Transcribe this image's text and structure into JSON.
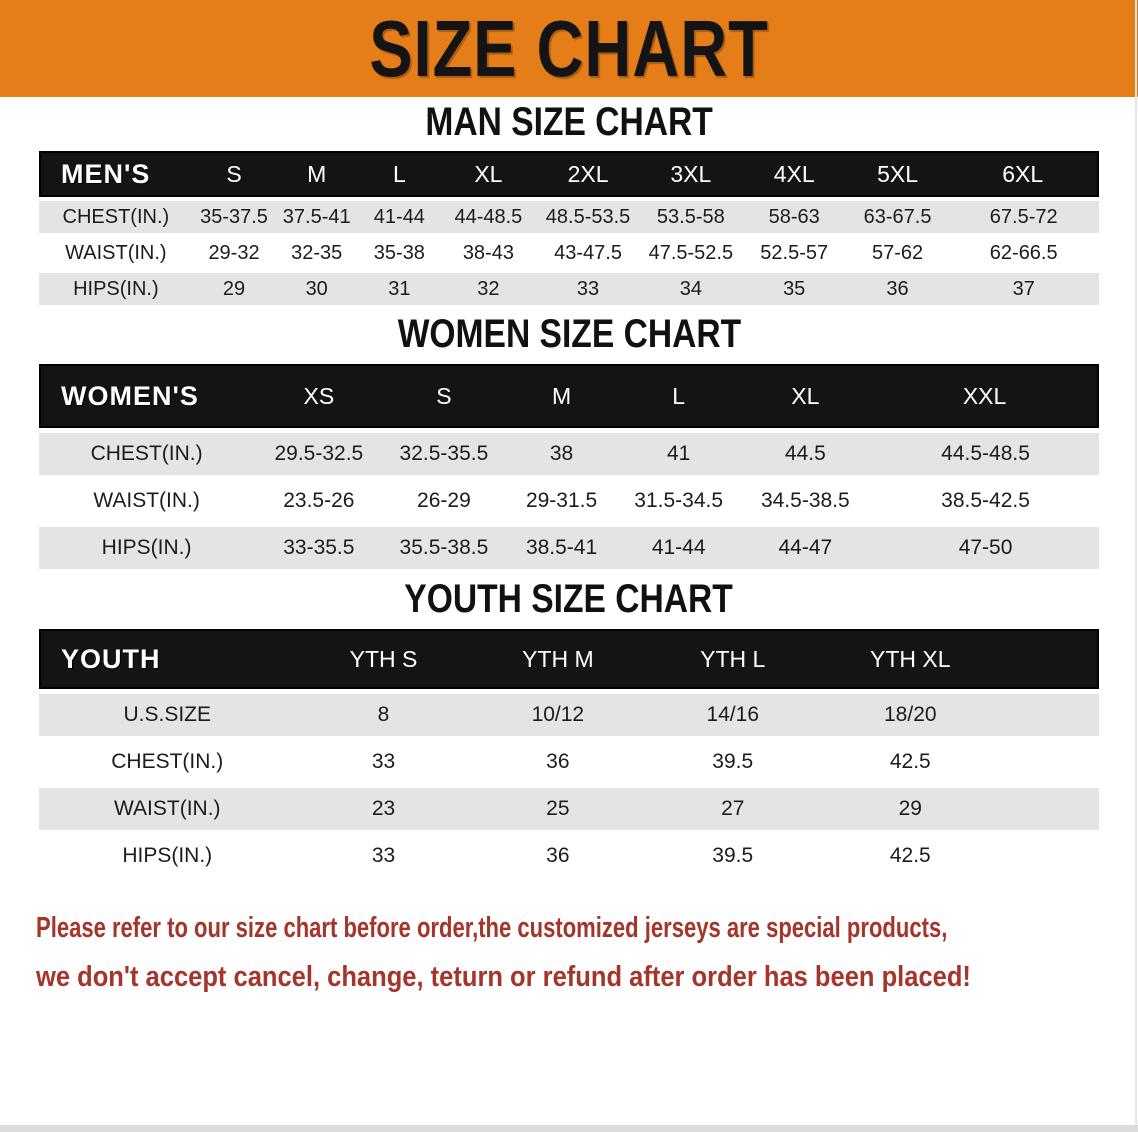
{
  "banner": {
    "title": "SIZE CHART"
  },
  "colors": {
    "banner_bg": "#E57E19",
    "header_bg": "#141414",
    "row_alt": "#E4E4E4",
    "disclaimer_color": "#A5352B"
  },
  "sections": [
    {
      "heading": "MAN SIZE CHART",
      "table": {
        "label": "MEN'S",
        "columns": [
          "S",
          "M",
          "L",
          "XL",
          "2XL",
          "3XL",
          "4XL",
          "5XL",
          "6XL"
        ],
        "rows": [
          {
            "label": "CHEST(IN.)",
            "values": [
              "35-37.5",
              "37.5-41",
              "41-44",
              "44-48.5",
              "48.5-53.5",
              "53.5-58",
              "58-63",
              "63-67.5",
              "67.5-72"
            ]
          },
          {
            "label": "WAIST(IN.)",
            "values": [
              "29-32",
              "32-35",
              "35-38",
              "38-43",
              "43-47.5",
              "47.5-52.5",
              "52.5-57",
              "57-62",
              "62-66.5"
            ]
          },
          {
            "label": "HIPS(IN.)",
            "values": [
              "29",
              "30",
              "31",
              "32",
              "33",
              "34",
              "35",
              "36",
              "37"
            ]
          }
        ]
      }
    },
    {
      "heading": "WOMEN SIZE CHART",
      "table": {
        "label": "WOMEN'S",
        "columns": [
          "XS",
          "S",
          "M",
          "L",
          "XL",
          "XXL"
        ],
        "rows": [
          {
            "label": "CHEST(IN.)",
            "values": [
              "29.5-32.5",
              "32.5-35.5",
              "38",
              "41",
              "44.5",
              "44.5-48.5"
            ]
          },
          {
            "label": "WAIST(IN.)",
            "values": [
              "23.5-26",
              "26-29",
              "29-31.5",
              "31.5-34.5",
              "34.5-38.5",
              "38.5-42.5"
            ]
          },
          {
            "label": "HIPS(IN.)",
            "values": [
              "33-35.5",
              "35.5-38.5",
              "38.5-41",
              "41-44",
              "44-47",
              "47-50"
            ]
          }
        ]
      }
    },
    {
      "heading": "YOUTH SIZE CHART",
      "table": {
        "label": "YOUTH",
        "columns": [
          "YTH S",
          "YTH M",
          "YTH L",
          "YTH XL"
        ],
        "rows": [
          {
            "label": "U.S.SIZE",
            "values": [
              "8",
              "10/12",
              "14/16",
              "18/20"
            ]
          },
          {
            "label": "CHEST(IN.)",
            "values": [
              "33",
              "36",
              "39.5",
              "42.5"
            ]
          },
          {
            "label": "WAIST(IN.)",
            "values": [
              "23",
              "25",
              "27",
              "29"
            ]
          },
          {
            "label": "HIPS(IN.)",
            "values": [
              "33",
              "36",
              "39.5",
              "42.5"
            ]
          }
        ]
      }
    }
  ],
  "disclaimer": {
    "line1": "Please refer to our size chart before order,the customized jerseys are special products,",
    "line2": "we don't accept cancel, change, teturn or refund after order has been placed!"
  }
}
